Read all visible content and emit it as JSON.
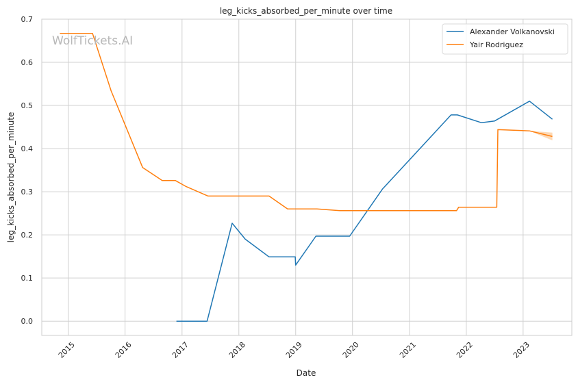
{
  "chart_data": {
    "type": "line",
    "title": "leg_kicks_absorbed_per_minute over time",
    "xlabel": "Date",
    "ylabel": "leg_kicks_absorbed_per_minute",
    "watermark": "WolfTickets.AI",
    "x_axis": {
      "kind": "date",
      "range": [
        "2014-07-15",
        "2023-11-10"
      ],
      "ticks": [
        {
          "date": "2015-01-01",
          "label": "2015"
        },
        {
          "date": "2016-01-01",
          "label": "2016"
        },
        {
          "date": "2017-01-01",
          "label": "2017"
        },
        {
          "date": "2018-01-01",
          "label": "2018"
        },
        {
          "date": "2019-01-01",
          "label": "2019"
        },
        {
          "date": "2020-01-01",
          "label": "2020"
        },
        {
          "date": "2021-01-01",
          "label": "2021"
        },
        {
          "date": "2022-01-01",
          "label": "2022"
        },
        {
          "date": "2023-01-01",
          "label": "2023"
        }
      ]
    },
    "y_axis": {
      "range": [
        -0.033,
        0.7
      ],
      "ticks": [
        0.0,
        0.1,
        0.2,
        0.3,
        0.4,
        0.5,
        0.6,
        0.7
      ],
      "tick_labels": [
        "0.0",
        "0.1",
        "0.2",
        "0.3",
        "0.4",
        "0.5",
        "0.6",
        "0.7"
      ]
    },
    "grid": true,
    "legend": {
      "position": "top-right"
    },
    "series": [
      {
        "name": "Alexander Volkanovski",
        "color": "#1f77b4",
        "points": [
          {
            "x": "2016-11-26",
            "y": 0.0
          },
          {
            "x": "2017-06-11",
            "y": 0.0
          },
          {
            "x": "2017-11-19",
            "y": 0.227
          },
          {
            "x": "2018-02-11",
            "y": 0.19
          },
          {
            "x": "2018-07-14",
            "y": 0.149
          },
          {
            "x": "2018-12-29",
            "y": 0.149
          },
          {
            "x": "2019-01-01",
            "y": 0.13
          },
          {
            "x": "2019-05-11",
            "y": 0.197
          },
          {
            "x": "2019-12-14",
            "y": 0.197
          },
          {
            "x": "2020-07-11",
            "y": 0.306
          },
          {
            "x": "2021-09-25",
            "y": 0.478
          },
          {
            "x": "2021-11-05",
            "y": 0.478
          },
          {
            "x": "2022-04-09",
            "y": 0.46
          },
          {
            "x": "2022-07-02",
            "y": 0.464
          },
          {
            "x": "2023-02-11",
            "y": 0.51
          },
          {
            "x": "2023-07-08",
            "y": 0.468
          }
        ]
      },
      {
        "name": "Yair Rodriguez",
        "color": "#ff7f0e",
        "band_color": "#fdd9b5",
        "points": [
          {
            "x": "2014-11-08",
            "y": 0.667
          },
          {
            "x": "2015-06-06",
            "y": 0.667
          },
          {
            "x": "2015-10-03",
            "y": 0.534
          },
          {
            "x": "2016-04-23",
            "y": 0.356
          },
          {
            "x": "2016-08-27",
            "y": 0.326
          },
          {
            "x": "2016-11-19",
            "y": 0.326
          },
          {
            "x": "2017-01-28",
            "y": 0.312
          },
          {
            "x": "2017-06-17",
            "y": 0.29
          },
          {
            "x": "2018-07-14",
            "y": 0.29
          },
          {
            "x": "2018-11-10",
            "y": 0.26
          },
          {
            "x": "2019-05-18",
            "y": 0.26
          },
          {
            "x": "2019-10-12",
            "y": 0.256
          },
          {
            "x": "2021-10-30",
            "y": 0.256
          },
          {
            "x": "2021-11-13",
            "y": 0.264
          },
          {
            "x": "2022-07-16",
            "y": 0.264
          },
          {
            "x": "2022-07-23",
            "y": 0.444
          },
          {
            "x": "2023-02-11",
            "y": 0.441
          },
          {
            "x": "2023-07-08",
            "y": 0.428
          }
        ],
        "band": [
          {
            "x": "2023-02-11",
            "lo": 0.441,
            "hi": 0.441
          },
          {
            "x": "2023-07-08",
            "lo": 0.419,
            "hi": 0.437
          }
        ]
      }
    ]
  }
}
